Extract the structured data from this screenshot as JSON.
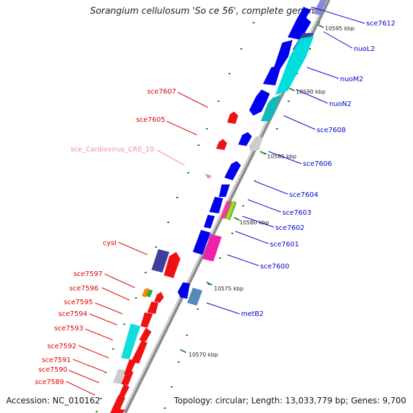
{
  "title": "Sorangium cellulosum 'So ce 56', complete genome",
  "footer": {
    "accession": "Accession: NC_010162",
    "summary": "Topology: circular; Length: 13,033,779 bp; Genes: 9,700"
  },
  "colors": {
    "forward_label": "#0000cc",
    "reverse_label": "#dd0000",
    "rna_label": "#ee88bb",
    "backbone": "#999999",
    "tick": "#228822"
  },
  "kbp_labels": [
    "10595 kbp",
    "10590 kbp",
    "10585 kbp",
    "10580 kbp",
    "10575 kbp",
    "10570 kbp"
  ],
  "forward_genes": [
    "sce7612",
    "nuoL2",
    "nuoM2",
    "nuoN2",
    "sce7608",
    "sce7606",
    "sce7604",
    "sce7603",
    "sce7602",
    "sce7601",
    "sce7600",
    "metB2"
  ],
  "reverse_genes": [
    "sce7607",
    "sce7605",
    "cysI",
    "sce7597",
    "sce7596",
    "sce7595",
    "sce7594",
    "sce7593",
    "sce7592",
    "sce7591",
    "sce7590",
    "sce7589"
  ],
  "rna_genes": [
    "sce_Cardiovirus_CRE_10"
  ]
}
